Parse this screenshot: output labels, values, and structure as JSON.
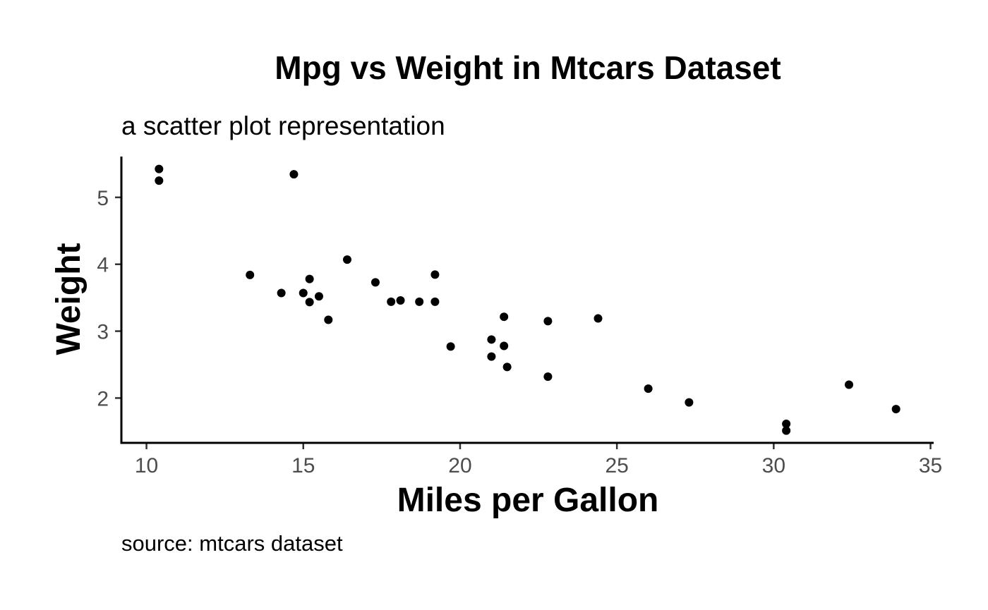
{
  "chart_data": {
    "type": "scatter",
    "title": "Mpg vs Weight in Mtcars Dataset",
    "subtitle": "a scatter plot representation",
    "caption": "source: mtcars dataset",
    "xlabel": "Miles per Gallon",
    "ylabel": "Weight",
    "xlim": [
      9.2,
      35.1
    ],
    "ylim": [
      1.33,
      5.61
    ],
    "xticks": [
      10,
      15,
      20,
      25,
      30,
      35
    ],
    "yticks": [
      2,
      3,
      4,
      5
    ],
    "grid": false,
    "point_color": "#000000",
    "points": [
      {
        "x": 21.0,
        "y": 2.62
      },
      {
        "x": 21.0,
        "y": 2.875
      },
      {
        "x": 22.8,
        "y": 2.32
      },
      {
        "x": 21.4,
        "y": 3.215
      },
      {
        "x": 18.7,
        "y": 3.44
      },
      {
        "x": 18.1,
        "y": 3.46
      },
      {
        "x": 14.3,
        "y": 3.57
      },
      {
        "x": 24.4,
        "y": 3.19
      },
      {
        "x": 22.8,
        "y": 3.15
      },
      {
        "x": 19.2,
        "y": 3.44
      },
      {
        "x": 17.8,
        "y": 3.44
      },
      {
        "x": 16.4,
        "y": 4.07
      },
      {
        "x": 17.3,
        "y": 3.73
      },
      {
        "x": 15.2,
        "y": 3.78
      },
      {
        "x": 10.4,
        "y": 5.25
      },
      {
        "x": 10.4,
        "y": 5.424
      },
      {
        "x": 14.7,
        "y": 5.345
      },
      {
        "x": 32.4,
        "y": 2.2
      },
      {
        "x": 30.4,
        "y": 1.615
      },
      {
        "x": 33.9,
        "y": 1.835
      },
      {
        "x": 21.5,
        "y": 2.465
      },
      {
        "x": 15.5,
        "y": 3.52
      },
      {
        "x": 15.2,
        "y": 3.435
      },
      {
        "x": 13.3,
        "y": 3.84
      },
      {
        "x": 19.2,
        "y": 3.845
      },
      {
        "x": 27.3,
        "y": 1.935
      },
      {
        "x": 26.0,
        "y": 2.14
      },
      {
        "x": 30.4,
        "y": 1.513
      },
      {
        "x": 15.8,
        "y": 3.17
      },
      {
        "x": 19.7,
        "y": 2.77
      },
      {
        "x": 15.0,
        "y": 3.57
      },
      {
        "x": 21.4,
        "y": 2.78
      }
    ]
  }
}
